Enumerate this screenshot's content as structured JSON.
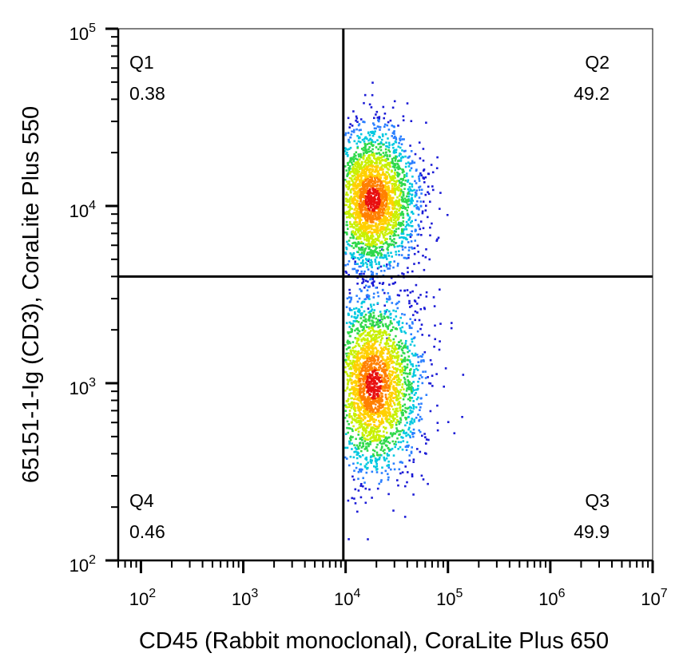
{
  "chart_data": {
    "type": "scatter",
    "title": "",
    "xlabel": "CD45 (Rabbit monoclonal), CoraLite Plus 650",
    "ylabel": "65151-1-Ig (CD3), CoraLite Plus 550",
    "xscale": "log",
    "yscale": "log",
    "xlim": [
      60,
      10000000
    ],
    "ylim": [
      100,
      100000
    ],
    "x_ticks": [
      {
        "value": 100,
        "base": "10",
        "exp": "2"
      },
      {
        "value": 1000,
        "base": "10",
        "exp": "3"
      },
      {
        "value": 10000,
        "base": "10",
        "exp": "4"
      },
      {
        "value": 100000,
        "base": "10",
        "exp": "5"
      },
      {
        "value": 1000000,
        "base": "10",
        "exp": "6"
      },
      {
        "value": 10000000,
        "base": "10",
        "exp": "7"
      }
    ],
    "y_ticks": [
      {
        "value": 100,
        "base": "10",
        "exp": "2"
      },
      {
        "value": 1000,
        "base": "10",
        "exp": "3"
      },
      {
        "value": 10000,
        "base": "10",
        "exp": "4"
      },
      {
        "value": 100000,
        "base": "10",
        "exp": "5"
      }
    ],
    "gates": {
      "x": 9500,
      "y": 4000
    },
    "quadrants": [
      {
        "name": "Q1",
        "value": "0.38",
        "position": "top-left"
      },
      {
        "name": "Q2",
        "value": "49.2",
        "position": "top-right"
      },
      {
        "name": "Q3",
        "value": "49.9",
        "position": "bottom-right"
      },
      {
        "name": "Q4",
        "value": "0.46",
        "position": "bottom-left"
      }
    ],
    "populations": [
      {
        "center_x": 18000,
        "center_y": 11000,
        "spread_x": 0.17,
        "spread_y": 0.2,
        "count": 2600
      },
      {
        "center_x": 18500,
        "center_y": 1000,
        "spread_x": 0.18,
        "spread_y": 0.25,
        "count": 2600
      }
    ],
    "density_colors": [
      "#1b1bd6",
      "#2a7fff",
      "#00c8e0",
      "#2fd94a",
      "#c8f000",
      "#ffd000",
      "#ff8000",
      "#e81010"
    ],
    "grid": false,
    "legend": "none"
  }
}
